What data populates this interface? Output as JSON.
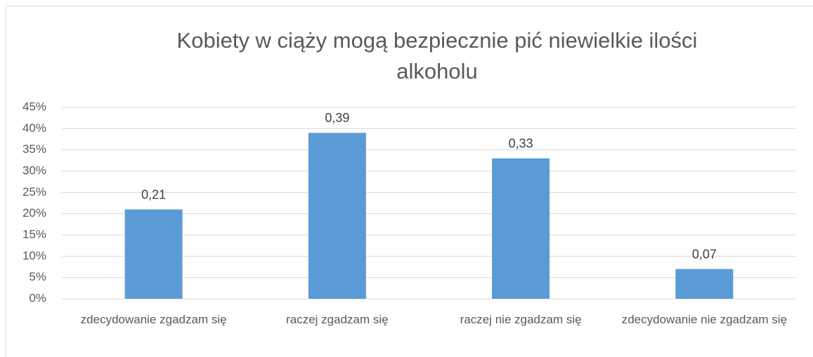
{
  "chart_data": {
    "type": "bar",
    "title": "Kobiety w ciąży mogą bezpiecznie pić niewielkie ilości alkoholu",
    "categories": [
      "zdecydowanie zgadzam się",
      "raczej zgadzam się",
      "raczej nie zgadzam się",
      "zdecydowanie nie zgadzam się"
    ],
    "values": [
      21,
      39,
      33,
      7
    ],
    "value_labels": [
      "0,21",
      "0,39",
      "0,33",
      "0,07"
    ],
    "color": "#5b9bd5",
    "ylim": [
      0,
      45
    ],
    "yticks": [
      {
        "value": 0,
        "label": "0%"
      },
      {
        "value": 5,
        "label": "5%"
      },
      {
        "value": 10,
        "label": "10%"
      },
      {
        "value": 15,
        "label": "15%"
      },
      {
        "value": 20,
        "label": "20%"
      },
      {
        "value": 25,
        "label": "25%"
      },
      {
        "value": 30,
        "label": "30%"
      },
      {
        "value": 35,
        "label": "35%"
      },
      {
        "value": 40,
        "label": "40%"
      },
      {
        "value": 45,
        "label": "45%"
      }
    ],
    "grid": true
  }
}
